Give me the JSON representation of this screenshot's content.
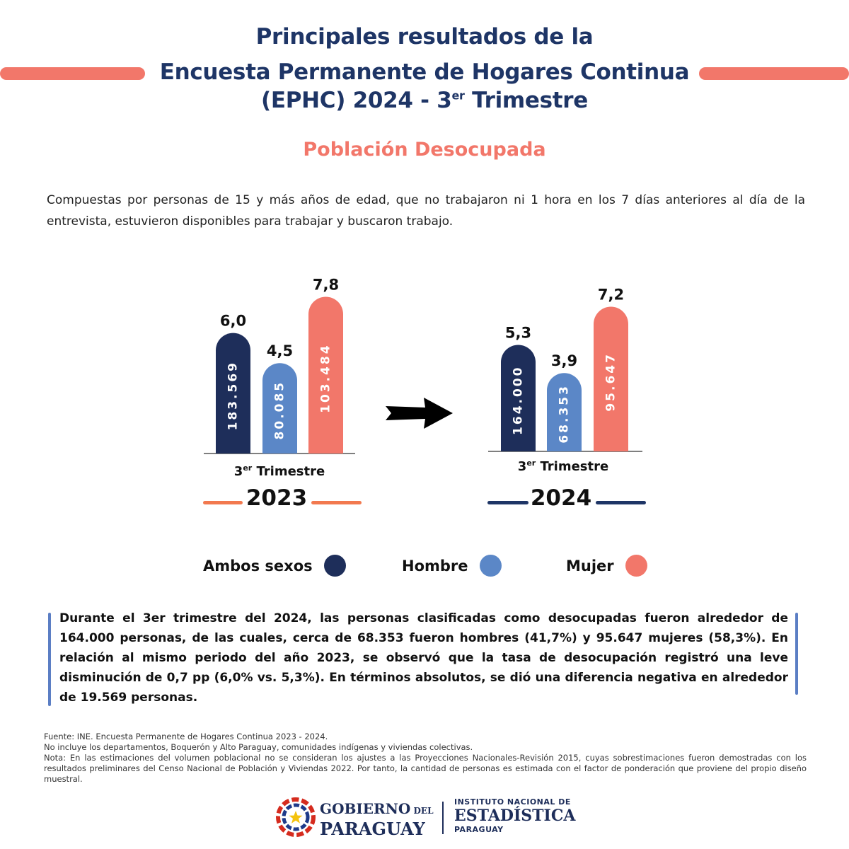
{
  "header": {
    "title_line1": "Principales resultados de la",
    "title_line2": "Encuesta Permanente de Hogares Continua",
    "title_line3_a": "(EPHC) 2024 - 3",
    "title_line3_sup": "er",
    "title_line3_b": " Trimestre",
    "subtitle": "Población Desocupada"
  },
  "description": "Compuestas por personas de 15 y más años de edad, que no trabajaron ni 1 hora en los 7 días anteriores al día de la entrevista, estuvieron disponibles para trabajar y buscaron trabajo.",
  "chart_data": [
    {
      "type": "bar",
      "year": "2023",
      "category_label_a": "3",
      "category_label_sup": "er",
      "category_label_b": " Trimestre",
      "series": [
        {
          "name": "Ambos sexos",
          "rate": 6.0,
          "rate_label": "6,0",
          "persons": 183569,
          "persons_label": "183.569"
        },
        {
          "name": "Hombre",
          "rate": 4.5,
          "rate_label": "4,5",
          "persons": 80085,
          "persons_label": "80.085"
        },
        {
          "name": "Mujer",
          "rate": 7.8,
          "rate_label": "7,8",
          "persons": 103484,
          "persons_label": "103.484"
        }
      ]
    },
    {
      "type": "bar",
      "year": "2024",
      "category_label_a": "3",
      "category_label_sup": "er",
      "category_label_b": " Trimestre",
      "series": [
        {
          "name": "Ambos sexos",
          "rate": 5.3,
          "rate_label": "5,3",
          "persons": 164000,
          "persons_label": "164.000"
        },
        {
          "name": "Hombre",
          "rate": 3.9,
          "rate_label": "3,9",
          "persons": 68353,
          "persons_label": "68.353"
        },
        {
          "name": "Mujer",
          "rate": 7.2,
          "rate_label": "7,2",
          "persons": 95647,
          "persons_label": "95.647"
        }
      ]
    }
  ],
  "legend": [
    {
      "label": "Ambos sexos",
      "color": "#1e2e5a"
    },
    {
      "label": "Hombre",
      "color": "#5b87c7"
    },
    {
      "label": "Mujer",
      "color": "#f2776a"
    }
  ],
  "colors": {
    "accent": "#f2776a",
    "navy": "#1e3566",
    "year_line_2023": "#f2794f",
    "year_line_2024": "#1e3566"
  },
  "summary": "Durante el 3er trimestre del 2024, las personas clasificadas como desocupadas fueron alrededor de 164.000 personas, de las cuales, cerca de 68.353 fueron hombres (41,7%) y 95.647 mujeres (58,3%). En relación al mismo periodo del año 2023, se observó que la tasa de desocupación registró una leve disminución de 0,7 pp (6,0% vs. 5,3%). En términos absolutos,  se dió una diferencia negativa en alrededor de  19.569 personas.",
  "notes": [
    "Fuente: INE. Encuesta Permanente de Hogares Continua 2023 - 2024.",
    "No incluye los departamentos, Boquerón y Alto Paraguay, comunidades indígenas y viviendas colectivas.",
    "Nota: En las estimaciones del volumen poblacional no se consideran los ajustes a las Proyecciones Nacionales-Revisión 2015, cuyas sobrestimaciones fueron demostradas con los resultados preliminares del Censo Nacional de Población y Viviendas 2022. Por tanto, la cantidad de personas es estimada con el factor de ponderación que proviene del propio diseño muestral."
  ],
  "footer": {
    "gov_line1_a": "GOBIERNO",
    "gov_line1_b": " DEL",
    "gov_line2": "PARAGUAY",
    "ine_line1": "INSTITUTO NACIONAL DE",
    "ine_line2": "ESTADÍSTICA",
    "ine_line3": "PARAGUAY"
  }
}
